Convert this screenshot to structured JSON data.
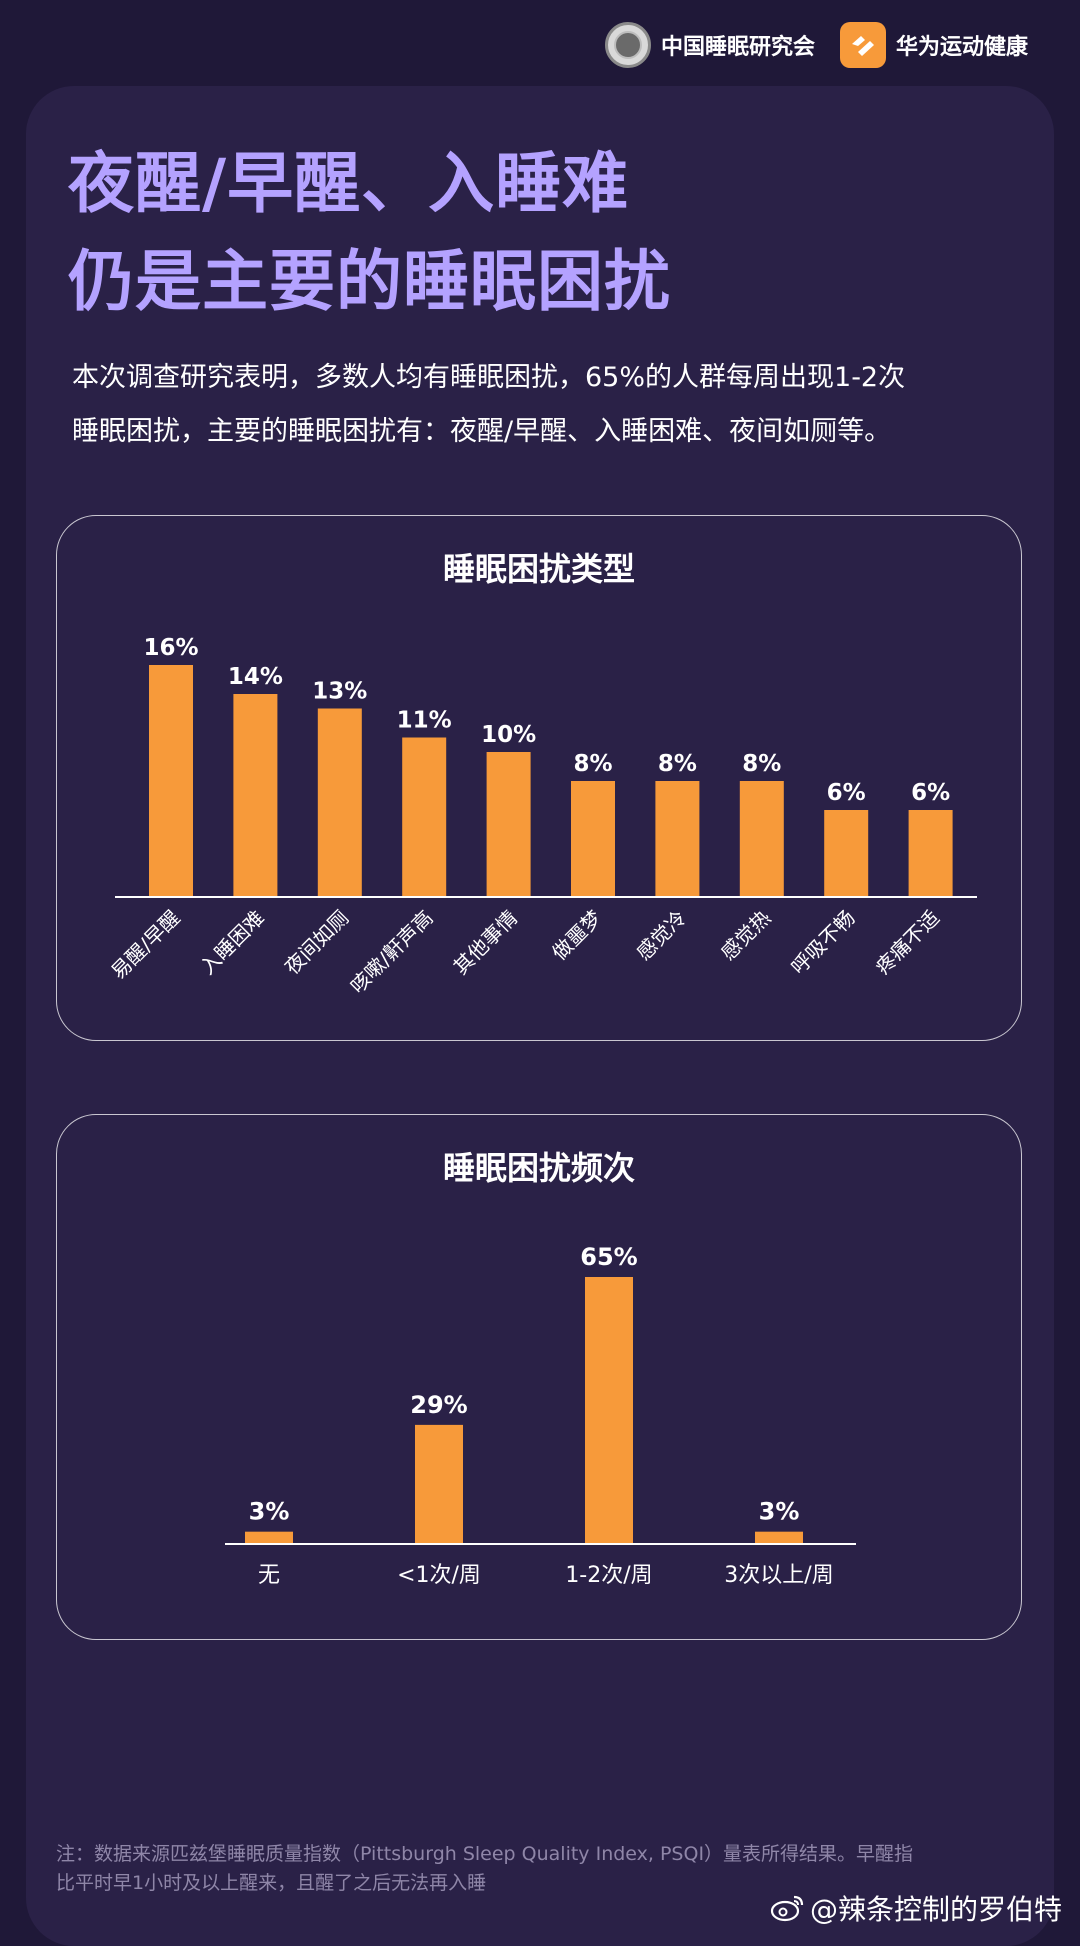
{
  "header": {
    "org1_name": "中国睡眠研究会",
    "org2_name": "华为运动健康"
  },
  "title": {
    "line1": "夜醒/早醒、入睡难",
    "line2": "仍是主要的睡眠困扰"
  },
  "intro": {
    "line1": "本次调查研究表明，多数人均有睡眠困扰，65%的人群每周出现1-2次",
    "line2": "睡眠困扰，主要的睡眠困扰有：夜醒/早醒、入睡困难、夜间如厕等。"
  },
  "colors": {
    "bar": "#f79a3a",
    "title_accent": "#b4a2ff",
    "background": "#1f1838",
    "card": "#2a2147"
  },
  "chart_data": [
    {
      "type": "bar",
      "title": "睡眠困扰类型",
      "categories": [
        "易醒/早醒",
        "入睡困难",
        "夜间如厕",
        "咳嗽/鼾声高",
        "其他事情",
        "做噩梦",
        "感觉冷",
        "感觉热",
        "呼吸不畅",
        "疼痛不适"
      ],
      "values": [
        16,
        14,
        13,
        11,
        10,
        8,
        8,
        8,
        6,
        6
      ],
      "value_labels": [
        "16%",
        "14%",
        "13%",
        "11%",
        "10%",
        "8%",
        "8%",
        "8%",
        "6%",
        "6%"
      ],
      "ylim": [
        0,
        16
      ],
      "grid": false,
      "legend": "none"
    },
    {
      "type": "bar",
      "title": "睡眠困扰频次",
      "categories": [
        "无",
        "<1次/周",
        "1-2次/周",
        "3次以上/周"
      ],
      "values": [
        3,
        29,
        65,
        3
      ],
      "value_labels": [
        "3%",
        "29%",
        "65%",
        "3%"
      ],
      "ylim": [
        0,
        65
      ],
      "grid": false,
      "legend": "none"
    }
  ],
  "footnote": {
    "line1": "注：数据来源匹兹堡睡眠质量指数（Pittsburgh Sleep Quality Index, PSQI）量表所得结果。早醒指",
    "line2": "比平时早1小时及以上醒来，且醒了之后无法再入睡"
  },
  "watermark": {
    "text": "@辣条控制的罗伯特",
    "icon": "weibo-icon"
  }
}
